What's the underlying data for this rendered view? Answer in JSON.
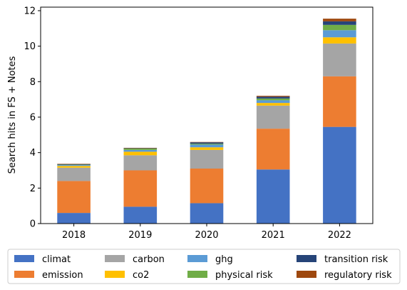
{
  "chart_data": {
    "type": "bar",
    "stacked": true,
    "title": "",
    "xlabel": "",
    "ylabel": "Search hits in FS + Notes",
    "ylim": [
      0,
      12.2
    ],
    "yticks": [
      "0",
      "2",
      "4",
      "6",
      "8",
      "10",
      "12"
    ],
    "categories": [
      "2018",
      "2019",
      "2020",
      "2021",
      "2022"
    ],
    "legend_position": "bottom",
    "series": [
      {
        "name": "climat",
        "color": "#4472c4",
        "values": [
          0.6,
          0.95,
          1.15,
          3.05,
          5.45
        ]
      },
      {
        "name": "emission",
        "color": "#ed7d31",
        "values": [
          1.8,
          2.05,
          1.95,
          2.3,
          2.85
        ]
      },
      {
        "name": "carbon",
        "color": "#a5a5a5",
        "values": [
          0.75,
          0.85,
          1.05,
          1.3,
          1.85
        ]
      },
      {
        "name": "co2",
        "color": "#ffc000",
        "values": [
          0.1,
          0.2,
          0.15,
          0.15,
          0.35
        ]
      },
      {
        "name": "ghg",
        "color": "#5b9bd5",
        "values": [
          0.05,
          0.1,
          0.15,
          0.15,
          0.4
        ]
      },
      {
        "name": "physical risk",
        "color": "#70ad47",
        "values": [
          0.02,
          0.08,
          0.05,
          0.1,
          0.3
        ]
      },
      {
        "name": "transition risk",
        "color": "#264478",
        "values": [
          0.03,
          0.02,
          0.08,
          0.1,
          0.2
        ]
      },
      {
        "name": "regulatory risk",
        "color": "#9e480e",
        "values": [
          0.02,
          0.02,
          0.02,
          0.05,
          0.15
        ]
      }
    ]
  }
}
